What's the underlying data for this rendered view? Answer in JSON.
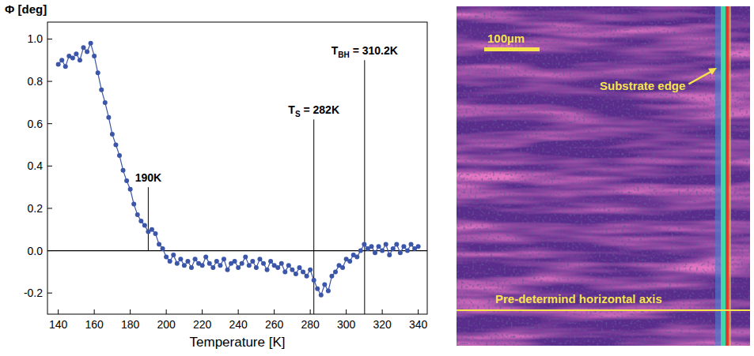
{
  "chart_data": {
    "type": "scatter",
    "x_label": "Temperature [K]",
    "y_label": "Φ [deg]",
    "xlim": [
      134,
      345
    ],
    "xticks": [
      140,
      160,
      180,
      200,
      220,
      240,
      260,
      280,
      300,
      320,
      340
    ],
    "ylim": [
      -0.3,
      1.08
    ],
    "yticks": [
      -0.2,
      {
        "value": 0,
        "label": "0.0"
      },
      0.2,
      0.4,
      0.6,
      0.8,
      {
        "value": 1,
        "label": "1.0"
      }
    ],
    "grid": false,
    "reference_lines": [
      0
    ],
    "x": [
      140,
      142,
      144,
      146,
      148,
      150,
      152,
      154,
      156,
      158,
      160,
      162,
      164,
      166,
      168,
      170,
      172,
      174,
      176,
      178,
      180,
      182,
      184,
      186,
      188,
      190,
      192,
      194,
      196,
      198,
      200,
      202,
      204,
      206,
      208,
      210,
      212,
      214,
      216,
      218,
      220,
      222,
      224,
      226,
      228,
      230,
      232,
      234,
      236,
      238,
      240,
      242,
      244,
      246,
      248,
      250,
      252,
      254,
      256,
      258,
      260,
      262,
      264,
      266,
      268,
      270,
      272,
      274,
      276,
      278,
      280,
      282,
      284,
      286,
      288,
      290,
      292,
      294,
      296,
      298,
      300,
      302,
      304,
      306,
      308,
      310,
      312,
      314,
      316,
      318,
      320,
      322,
      324,
      326,
      328,
      330,
      332,
      334,
      336,
      338,
      340
    ],
    "series": [
      {
        "color": "#3b55a8",
        "marker": "circle",
        "line_style": "solid",
        "values": [
          0.88,
          0.9,
          0.87,
          0.92,
          0.91,
          0.93,
          0.9,
          0.96,
          0.94,
          0.98,
          0.92,
          0.84,
          0.76,
          0.7,
          0.63,
          0.55,
          0.5,
          0.45,
          0.38,
          0.33,
          0.29,
          0.22,
          0.17,
          0.14,
          0.12,
          0.09,
          0.1,
          0.08,
          0.03,
          0.01,
          -0.03,
          -0.05,
          -0.02,
          -0.06,
          -0.04,
          -0.07,
          -0.05,
          -0.08,
          -0.04,
          -0.06,
          -0.07,
          -0.03,
          -0.06,
          -0.08,
          -0.05,
          -0.07,
          -0.04,
          -0.09,
          -0.06,
          -0.05,
          -0.08,
          -0.06,
          -0.03,
          -0.07,
          -0.05,
          -0.08,
          -0.04,
          -0.06,
          -0.09,
          -0.05,
          -0.07,
          -0.08,
          -0.06,
          -0.1,
          -0.07,
          -0.09,
          -0.11,
          -0.08,
          -0.1,
          -0.12,
          -0.09,
          -0.14,
          -0.18,
          -0.21,
          -0.16,
          -0.19,
          -0.12,
          -0.1,
          -0.07,
          -0.08,
          -0.04,
          -0.05,
          -0.02,
          -0.03,
          0.0,
          0.03,
          0.01,
          0.02,
          -0.01,
          0.02,
          0.0,
          0.03,
          -0.02,
          0.01,
          0.03,
          -0.01,
          0.02,
          0.0,
          0.03,
          0.01,
          0.02
        ]
      }
    ],
    "annotations": [
      {
        "x": 190,
        "y_range": [
          0,
          0.3
        ],
        "label": "190K"
      },
      {
        "x": 282,
        "y_range": [
          -0.3,
          0.62
        ],
        "label": "T",
        "label_sub": "S",
        "label_suffix": " = 282K"
      },
      {
        "x": 310.2,
        "y_range": [
          -0.3,
          0.9
        ],
        "label": "T",
        "label_sub": "BH",
        "label_suffix": " = 310.2K"
      }
    ]
  },
  "image_panel": {
    "scale_bar_label": "100µm",
    "edge_label": "Substrate edge",
    "axis_label": "Pre-determind horizontal axis"
  }
}
